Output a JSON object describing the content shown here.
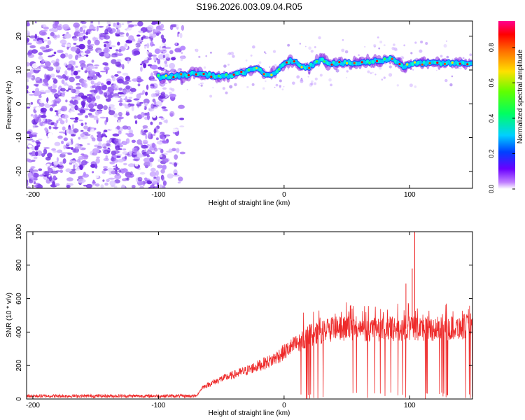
{
  "title": "S196.2026.003.09.04.R05",
  "chart_data": [
    {
      "type": "heatmap",
      "name": "spectrogram",
      "xlabel": "Height of straight line (km)",
      "ylabel": "Frequency (Hz)",
      "xlim": [
        -205,
        150
      ],
      "ylim": [
        -25,
        24.5
      ],
      "xticks": [
        -200,
        -100,
        0,
        100
      ],
      "yticks": [
        -20,
        -10,
        0,
        10,
        20
      ],
      "colorbar": {
        "label": "Normalized spectral amplitude",
        "range": [
          0,
          0.95
        ],
        "ticks": [
          "0.0",
          "0.2",
          "0.4",
          "0.6",
          "0.8"
        ]
      },
      "noise_region_x": [
        -205,
        -80
      ],
      "ridge": {
        "x": [
          -100,
          -90,
          -80,
          -70,
          -60,
          -50,
          -40,
          -30,
          -25,
          -20,
          -15,
          -10,
          -5,
          0,
          5,
          10,
          15,
          20,
          25,
          30,
          35,
          40,
          50,
          60,
          70,
          80,
          85,
          90,
          95,
          100,
          105,
          110,
          120,
          130,
          140,
          150
        ],
        "y": [
          8,
          8,
          8.5,
          9,
          8.5,
          8,
          8.5,
          9.5,
          10.5,
          10,
          8.5,
          8.5,
          10,
          11.5,
          13,
          12,
          11,
          11,
          12,
          13.5,
          12,
          12,
          12,
          12,
          12.5,
          13,
          13.5,
          12.5,
          11,
          11.5,
          12,
          12,
          12,
          12,
          12,
          12
        ]
      }
    },
    {
      "type": "line",
      "name": "snr",
      "xlabel": "Height of straight line (km)",
      "ylabel": "SNR (10 * v/v)",
      "xlim": [
        -205,
        150
      ],
      "ylim": [
        0,
        1000
      ],
      "xticks": [
        -200,
        -100,
        0,
        100
      ],
      "yticks": [
        0,
        200,
        400,
        600,
        800,
        1000
      ],
      "color": "#ee2a2a",
      "envelope": {
        "x": [
          -205,
          -70,
          -65,
          -50,
          -30,
          -10,
          0,
          10,
          20,
          30,
          40,
          50,
          60,
          70,
          80,
          90,
          100,
          110,
          120,
          130,
          140,
          150
        ],
        "base": [
          15,
          15,
          70,
          120,
          170,
          230,
          280,
          330,
          380,
          400,
          420,
          420,
          410,
          410,
          420,
          420,
          420,
          420,
          420,
          420,
          430,
          440
        ]
      },
      "peaks": [
        {
          "x": 104,
          "y": 1000
        },
        {
          "x": 102,
          "y": 780
        },
        {
          "x": 97,
          "y": 690
        }
      ]
    }
  ]
}
